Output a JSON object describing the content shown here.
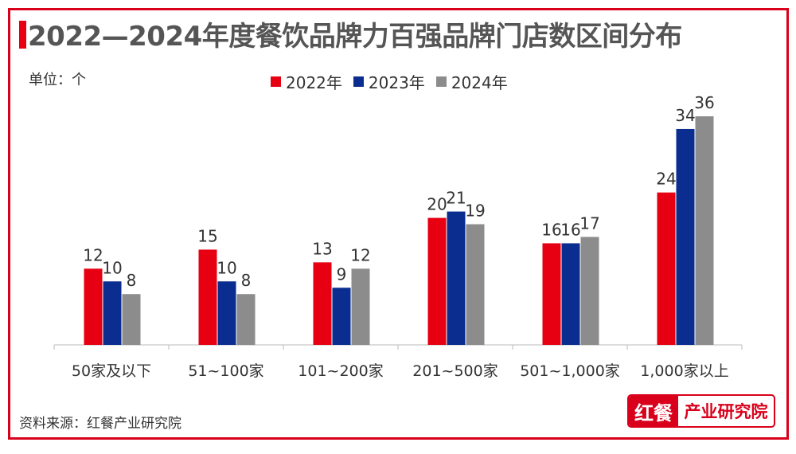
{
  "title": "2022—2024年度餐饮品牌力百强品牌门店数区间分布",
  "unit_label": "单位：个",
  "source": "资料来源：红餐产业研究院",
  "logo": {
    "part1": "红餐",
    "part2": "产业研究院"
  },
  "colors": {
    "accent": "#e60012",
    "2022": "#e60012",
    "2023": "#0a2d8f",
    "2024": "#8c8c8c"
  },
  "chart_data": {
    "type": "bar",
    "title": "2022—2024年度餐饮品牌力百强品牌门店数区间分布",
    "ylabel": "单位：个",
    "xlabel": "",
    "categories": [
      "50家及以下",
      "51~100家",
      "101~200家",
      "201~500家",
      "501~1,000家",
      "1,000家以上"
    ],
    "series": [
      {
        "name": "2022年",
        "color": "#e60012",
        "values": [
          12,
          15,
          13,
          20,
          16,
          24
        ]
      },
      {
        "name": "2023年",
        "color": "#0a2d8f",
        "values": [
          10,
          10,
          9,
          21,
          16,
          34
        ]
      },
      {
        "name": "2024年",
        "color": "#8c8c8c",
        "values": [
          8,
          8,
          12,
          19,
          17,
          36
        ]
      }
    ],
    "ylim": [
      0,
      36
    ],
    "grid": false,
    "legend": "top-center",
    "data_labels": true
  }
}
